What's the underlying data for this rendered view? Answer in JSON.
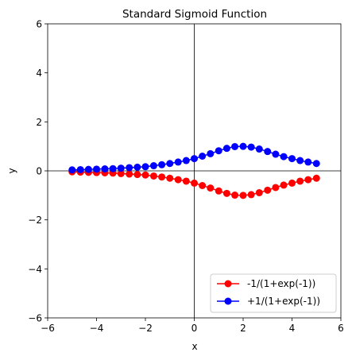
{
  "chart_data": {
    "type": "line",
    "title": "Standard Sigmoid Function",
    "xlabel": "x",
    "ylabel": "y",
    "xlim": [
      -6,
      6
    ],
    "ylim": [
      -6,
      6
    ],
    "xticks": [
      -6,
      -4,
      -2,
      0,
      2,
      4,
      6
    ],
    "yticks": [
      -6,
      -4,
      -2,
      0,
      2,
      4,
      6
    ],
    "x_tick_labels": [
      "−6",
      "−4",
      "−2",
      "0",
      "2",
      "4",
      "6"
    ],
    "y_tick_labels": [
      "−6",
      "−4",
      "−2",
      "0",
      "2",
      "4",
      "6"
    ],
    "zero_lines": true,
    "grid": false,
    "legend_position": "lower right",
    "x": [
      -5.0,
      -4.66,
      -4.33,
      -4.0,
      -3.66,
      -3.33,
      -3.0,
      -2.66,
      -2.33,
      -2.0,
      -1.66,
      -1.33,
      -1.0,
      -0.66,
      -0.33,
      0.0,
      0.33,
      0.66,
      1.0,
      1.33,
      1.66,
      2.0,
      2.33,
      2.66,
      3.0,
      3.33,
      3.66,
      4.0,
      4.33,
      4.66,
      5.0
    ],
    "series": [
      {
        "name": "-1/(1+exp(-1))",
        "color": "#ff0000",
        "values": [
          -0.04,
          -0.05,
          -0.06,
          -0.07,
          -0.08,
          -0.09,
          -0.11,
          -0.13,
          -0.15,
          -0.17,
          -0.21,
          -0.25,
          -0.3,
          -0.36,
          -0.42,
          -0.5,
          -0.6,
          -0.7,
          -0.82,
          -0.92,
          -0.99,
          -1.0,
          -0.97,
          -0.89,
          -0.79,
          -0.68,
          -0.58,
          -0.5,
          -0.42,
          -0.36,
          -0.3
        ]
      },
      {
        "name": "+1/(1+exp(-1))",
        "color": "#0000ff",
        "values": [
          0.04,
          0.05,
          0.06,
          0.07,
          0.08,
          0.09,
          0.11,
          0.13,
          0.15,
          0.17,
          0.21,
          0.25,
          0.3,
          0.36,
          0.42,
          0.5,
          0.6,
          0.7,
          0.82,
          0.92,
          0.99,
          1.0,
          0.97,
          0.89,
          0.79,
          0.68,
          0.58,
          0.5,
          0.42,
          0.36,
          0.3
        ]
      }
    ]
  }
}
